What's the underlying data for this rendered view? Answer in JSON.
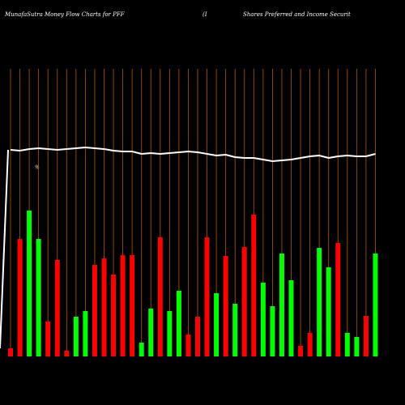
{
  "chart_data": {
    "type": "bar",
    "title": "MunafaSutra  Money Flow  Charts for PFF",
    "subtitle_parts": [
      "(I",
      "Shares Preferred and Income   Securit"
    ],
    "annotation": "%",
    "categories": [
      null,
      null,
      null,
      null,
      null,
      null,
      null,
      null,
      null,
      null,
      null,
      null,
      null,
      null,
      null,
      null,
      null,
      null,
      null,
      null,
      null,
      null,
      null,
      null,
      null,
      null,
      null,
      null,
      null,
      null,
      null,
      null,
      null,
      null,
      null,
      null,
      null,
      null,
      null,
      null
    ],
    "values": [
      10,
      145,
      180,
      145,
      43,
      119,
      7,
      49,
      56,
      113,
      121,
      101,
      125,
      125,
      17,
      59,
      147,
      56,
      81,
      27,
      49,
      147,
      78,
      124,
      65,
      135,
      175,
      91,
      62,
      127,
      94,
      13,
      29,
      134,
      110,
      140,
      29,
      24,
      50,
      127
    ],
    "colors": [
      "#ff0000",
      "#ff0000",
      "#00ff00",
      "#00ff00",
      "#ff0000",
      "#ff0000",
      "#ff0000",
      "#00ff00",
      "#00ff00",
      "#ff0000",
      "#ff0000",
      "#ff0000",
      "#ff0000",
      "#ff0000",
      "#00ff00",
      "#00ff00",
      "#ff0000",
      "#00ff00",
      "#00ff00",
      "#ff0000",
      "#ff0000",
      "#ff0000",
      "#00ff00",
      "#ff0000",
      "#00ff00",
      "#ff0000",
      "#ff0000",
      "#00ff00",
      "#00ff00",
      "#00ff00",
      "#00ff00",
      "#ff0000",
      "#ff0000",
      "#00ff00",
      "#00ff00",
      "#ff0000",
      "#00ff00",
      "#00ff00",
      "#ff0000",
      "#00ff00"
    ],
    "line": {
      "color": "#ffffff",
      "values": [
        255,
        254,
        256,
        257,
        256,
        255,
        256,
        257,
        258,
        257,
        256,
        254,
        253,
        253,
        250,
        251,
        250,
        251,
        252,
        253,
        252,
        250,
        248,
        249,
        246,
        245,
        245,
        243,
        241,
        242,
        243,
        245,
        247,
        248,
        245,
        247,
        248,
        247,
        247,
        250
      ]
    },
    "ylim": [
      0,
      440
    ],
    "category_line_color": "#b35900"
  }
}
